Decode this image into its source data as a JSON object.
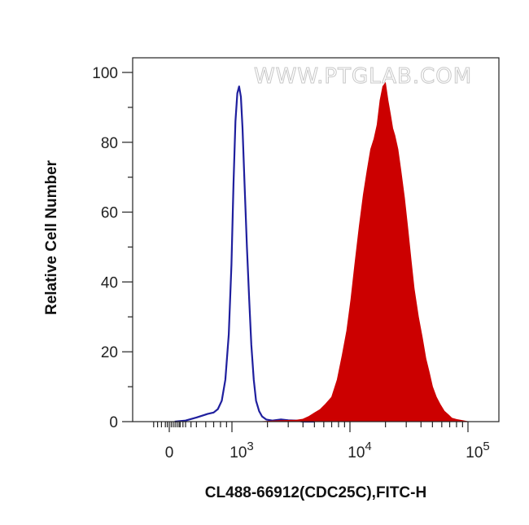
{
  "chart_data": {
    "type": "area",
    "title": "",
    "xlabel": "CL488-66912(CDC25C),FITC-H",
    "ylabel": "Relative Cell Number",
    "x_scale": "biexponential (log above ~500)",
    "ylim": [
      0,
      100
    ],
    "y_ticks": [
      0,
      20,
      40,
      60,
      80,
      100
    ],
    "x_tick_labels": [
      {
        "base": "0",
        "exp": ""
      },
      {
        "base": "10",
        "exp": "3"
      },
      {
        "base": "10",
        "exp": "4"
      },
      {
        "base": "10",
        "exp": "5"
      }
    ],
    "grid": false,
    "legend": "none",
    "watermark": "WWW.PTGLAB.COM",
    "series": [
      {
        "style": "outline",
        "color": "#1f1f9e",
        "points": [
          [
            100,
            0
          ],
          [
            300,
            0.3
          ],
          [
            500,
            1.2
          ],
          [
            620,
            2.2
          ],
          [
            700,
            2.6
          ],
          [
            760,
            3.6
          ],
          [
            820,
            6
          ],
          [
            880,
            12
          ],
          [
            940,
            25
          ],
          [
            990,
            45
          ],
          [
            1030,
            68
          ],
          [
            1070,
            86
          ],
          [
            1110,
            94
          ],
          [
            1150,
            96
          ],
          [
            1190,
            93
          ],
          [
            1230,
            84
          ],
          [
            1280,
            68
          ],
          [
            1340,
            50
          ],
          [
            1400,
            35
          ],
          [
            1460,
            22
          ],
          [
            1530,
            12
          ],
          [
            1600,
            6
          ],
          [
            1700,
            3
          ],
          [
            1800,
            1.5
          ],
          [
            1950,
            0.6
          ],
          [
            2200,
            0.3
          ],
          [
            2600,
            0.6
          ],
          [
            3000,
            0.4
          ],
          [
            3500,
            0.3
          ],
          [
            4000,
            0
          ],
          [
            5000,
            0
          ]
        ]
      },
      {
        "style": "filled",
        "color": "#cc0000",
        "points": [
          [
            1800,
            0
          ],
          [
            2500,
            0.3
          ],
          [
            3500,
            0.4
          ],
          [
            4000,
            0.7
          ],
          [
            4500,
            1.5
          ],
          [
            5000,
            2.5
          ],
          [
            5600,
            3.5
          ],
          [
            6200,
            5
          ],
          [
            7000,
            7
          ],
          [
            7800,
            12
          ],
          [
            8600,
            19
          ],
          [
            9400,
            26
          ],
          [
            10200,
            35
          ],
          [
            11000,
            45
          ],
          [
            12000,
            56
          ],
          [
            13000,
            65
          ],
          [
            14000,
            72
          ],
          [
            15000,
            78
          ],
          [
            16000,
            81
          ],
          [
            17000,
            85
          ],
          [
            18000,
            92
          ],
          [
            19000,
            96
          ],
          [
            20000,
            97
          ],
          [
            21000,
            92
          ],
          [
            22000,
            88
          ],
          [
            23000,
            84
          ],
          [
            24000,
            82
          ],
          [
            25500,
            78
          ],
          [
            27000,
            72
          ],
          [
            29000,
            64
          ],
          [
            31000,
            55
          ],
          [
            33000,
            46
          ],
          [
            35000,
            38
          ],
          [
            38000,
            30
          ],
          [
            41000,
            24
          ],
          [
            44000,
            18
          ],
          [
            47000,
            14
          ],
          [
            50000,
            10
          ],
          [
            54000,
            7
          ],
          [
            58000,
            5
          ],
          [
            63000,
            3
          ],
          [
            68000,
            2
          ],
          [
            73000,
            1
          ],
          [
            80000,
            0.6
          ],
          [
            90000,
            0.3
          ],
          [
            100000,
            0
          ]
        ]
      }
    ]
  }
}
